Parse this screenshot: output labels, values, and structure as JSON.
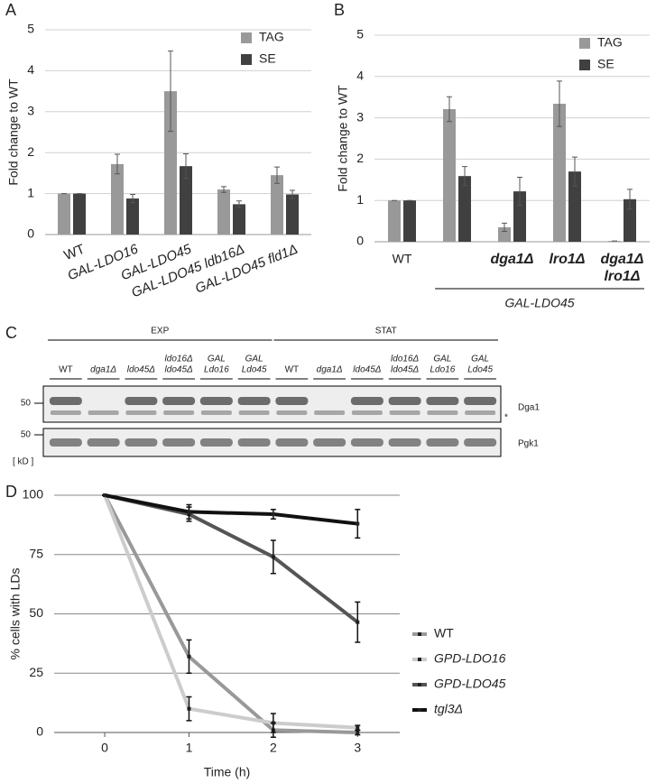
{
  "chart_data": [
    {
      "type": "bar",
      "label": "A",
      "ylabel": "Fold change to WT",
      "categories": [
        "WT",
        "GAL-LDO16",
        "GAL-LDO45",
        "GAL-LDO45 ldb16Δ",
        "GAL-LDO45 fld1Δ"
      ],
      "series": [
        {
          "name": "TAG",
          "color": "#999999",
          "values": [
            1,
            1.72,
            3.5,
            1.1,
            1.45
          ],
          "errors": [
            0,
            0.24,
            0.98,
            0.07,
            0.2
          ]
        },
        {
          "name": "SE",
          "color": "#404040",
          "values": [
            1,
            0.88,
            1.67,
            0.74,
            0.98
          ],
          "errors": [
            0,
            0.1,
            0.3,
            0.08,
            0.1
          ]
        }
      ],
      "ylim": [
        0,
        5
      ],
      "yticks": [
        0,
        1,
        2,
        3,
        4,
        5
      ],
      "grid": true,
      "legend": "upper right"
    },
    {
      "type": "bar",
      "label": "B",
      "ylabel": "Fold change to WT",
      "categories": [
        "WT",
        null,
        "dga1Δ",
        "lro1Δ",
        [
          "dga1Δ",
          "lro1Δ"
        ]
      ],
      "annotation": "GAL-LDO45",
      "series": [
        {
          "name": "TAG",
          "color": "#999999",
          "values": [
            1,
            3.21,
            0.35,
            3.34,
            0.02
          ],
          "errors": [
            0,
            0.3,
            0.1,
            0.55,
            0
          ]
        },
        {
          "name": "SE",
          "color": "#404040",
          "values": [
            1,
            1.59,
            1.22,
            1.7,
            1.03
          ],
          "errors": [
            0,
            0.23,
            0.34,
            0.35,
            0.24
          ]
        }
      ],
      "ylim": [
        0,
        5
      ],
      "yticks": [
        0,
        1,
        2,
        3,
        4,
        5
      ],
      "grid": true,
      "legend": "upper right"
    },
    {
      "type": "line",
      "label": "D",
      "xlabel": "Time (h)",
      "ylabel": "% cells with LDs",
      "x": [
        0,
        1,
        2,
        3
      ],
      "series": [
        {
          "name": "WT",
          "color": "#999999",
          "values": [
            100,
            32,
            1,
            0
          ],
          "errors": [
            0,
            7,
            3,
            1
          ]
        },
        {
          "name": "GPD-LDO16",
          "color": "#cccccc",
          "values": [
            100,
            10,
            4,
            2
          ],
          "errors": [
            0,
            5,
            4,
            1
          ]
        },
        {
          "name": "GPD-LDO45",
          "color": "#555555",
          "values": [
            100,
            92,
            74,
            46.5
          ],
          "errors": [
            0,
            3,
            7,
            8.5
          ]
        },
        {
          "name": "tgl3Δ",
          "color": "#111111",
          "values": [
            100,
            93,
            92,
            88
          ],
          "errors": [
            0,
            3,
            2,
            6
          ]
        }
      ],
      "xlim": [
        -0.6,
        3.5
      ],
      "xticks": [
        0,
        1,
        2,
        3
      ],
      "ylim": [
        0,
        100
      ],
      "yticks": [
        0,
        25,
        50,
        75,
        100
      ],
      "grid": true,
      "legend": "right"
    }
  ],
  "blot": {
    "label": "C",
    "groups": [
      "EXP",
      "STAT"
    ],
    "lanes": [
      [
        "WT"
      ],
      [
        "dga1Δ"
      ],
      [
        "ldo45Δ"
      ],
      [
        "ldo16Δ",
        "ldo45Δ"
      ],
      [
        "GAL",
        "Ldo16"
      ],
      [
        "GAL",
        "Ldo45"
      ],
      [
        "WT"
      ],
      [
        "dga1Δ"
      ],
      [
        "ldo45Δ"
      ],
      [
        "ldo16Δ",
        "ldo45Δ"
      ],
      [
        "GAL",
        "Ldo16"
      ],
      [
        "GAL",
        "Ldo45"
      ]
    ],
    "markers": [
      "50",
      "50"
    ],
    "unit": "[ kD ]",
    "proteins": [
      "Dga1",
      "Pgk1"
    ],
    "note": "*"
  }
}
